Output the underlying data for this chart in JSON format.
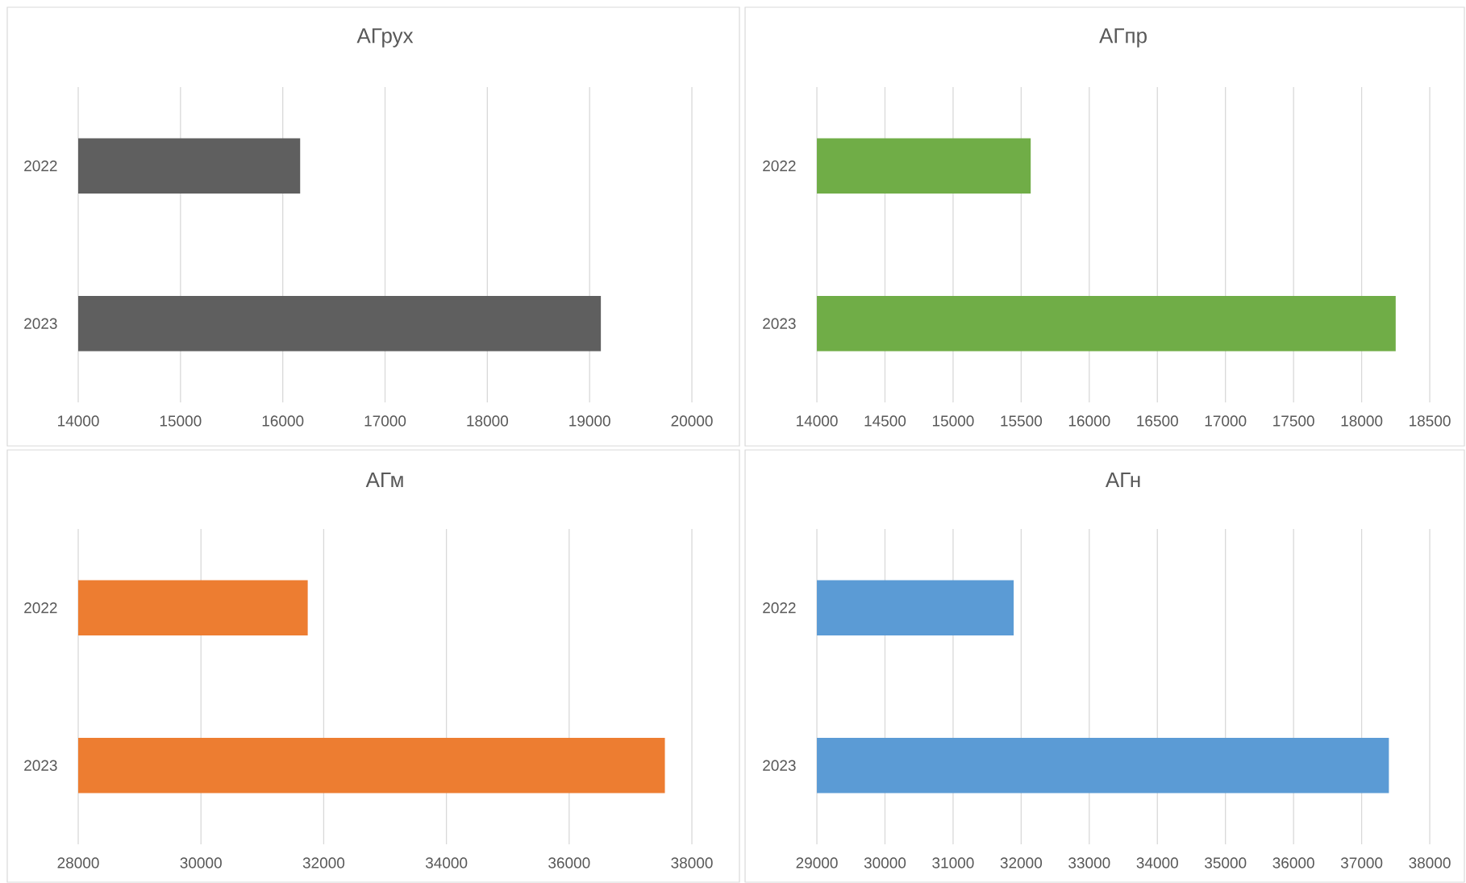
{
  "chart_data": [
    {
      "type": "bar",
      "orientation": "horizontal",
      "title": "АГрух",
      "categories": [
        "2022",
        "2023"
      ],
      "values": [
        16170,
        19110
      ],
      "color": "#5f5f5f",
      "xlim": [
        14000,
        20000
      ],
      "xticks": [
        14000,
        15000,
        16000,
        17000,
        18000,
        19000,
        20000
      ],
      "grid": "x"
    },
    {
      "type": "bar",
      "orientation": "horizontal",
      "title": "АГпр",
      "categories": [
        "2022",
        "2023"
      ],
      "values": [
        15570,
        18250
      ],
      "color": "#70ad47",
      "xlim": [
        14000,
        18500
      ],
      "xticks": [
        14000,
        14500,
        15000,
        15500,
        16000,
        16500,
        17000,
        17500,
        18000,
        18500
      ],
      "grid": "x"
    },
    {
      "type": "bar",
      "orientation": "horizontal",
      "title": "АГм",
      "categories": [
        "2022",
        "2023"
      ],
      "values": [
        31740,
        37560
      ],
      "color": "#ed7d31",
      "xlim": [
        28000,
        38000
      ],
      "xticks": [
        28000,
        30000,
        32000,
        34000,
        36000,
        38000
      ],
      "grid": "x"
    },
    {
      "type": "bar",
      "orientation": "horizontal",
      "title": "АГн",
      "categories": [
        "2022",
        "2023"
      ],
      "values": [
        31890,
        37400
      ],
      "color": "#5b9bd5",
      "xlim": [
        29000,
        38000
      ],
      "xticks": [
        29000,
        30000,
        31000,
        32000,
        33000,
        34000,
        35000,
        36000,
        37000,
        38000
      ],
      "grid": "x"
    }
  ]
}
